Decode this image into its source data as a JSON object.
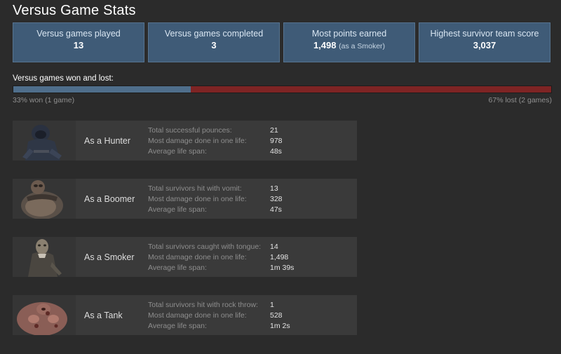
{
  "title": "Versus Game Stats",
  "summary": [
    {
      "label": "Versus games played",
      "value": "13",
      "note": ""
    },
    {
      "label": "Versus games completed",
      "value": "3",
      "note": ""
    },
    {
      "label": "Most points earned",
      "value": "1,498",
      "note": "(as a Smoker)"
    },
    {
      "label": "Highest survivor team score",
      "value": "3,037",
      "note": ""
    }
  ],
  "win_loss": {
    "label": "Versus games won and lost:",
    "won_fraction": 0.33,
    "won_caption": "33% won (1 game)",
    "lost_caption": "67% lost (2 games)",
    "won_color": "#4f6e8b",
    "lost_color": "#7e2424"
  },
  "classes": [
    {
      "name": "As a Hunter",
      "portrait_icon": "hunter-portrait-icon",
      "stats": [
        {
          "label": "Total successful pounces:",
          "value": "21"
        },
        {
          "label": "Most damage done in one life:",
          "value": "978"
        },
        {
          "label": "Average life span:",
          "value": "48s"
        }
      ]
    },
    {
      "name": "As a Boomer",
      "portrait_icon": "boomer-portrait-icon",
      "stats": [
        {
          "label": "Total survivors hit with vomit:",
          "value": "13"
        },
        {
          "label": "Most damage done in one life:",
          "value": "328"
        },
        {
          "label": "Average life span:",
          "value": "47s"
        }
      ]
    },
    {
      "name": "As a Smoker",
      "portrait_icon": "smoker-portrait-icon",
      "stats": [
        {
          "label": "Total survivors caught with tongue:",
          "value": "14"
        },
        {
          "label": "Most damage done in one life:",
          "value": "1,498"
        },
        {
          "label": "Average life span:",
          "value": "1m 39s"
        }
      ]
    },
    {
      "name": "As a Tank",
      "portrait_icon": "tank-portrait-icon",
      "stats": [
        {
          "label": "Total survivors hit with rock throw:",
          "value": "1"
        },
        {
          "label": "Most damage done in one life:",
          "value": "528"
        },
        {
          "label": "Average life span:",
          "value": "1m 2s"
        }
      ]
    }
  ]
}
